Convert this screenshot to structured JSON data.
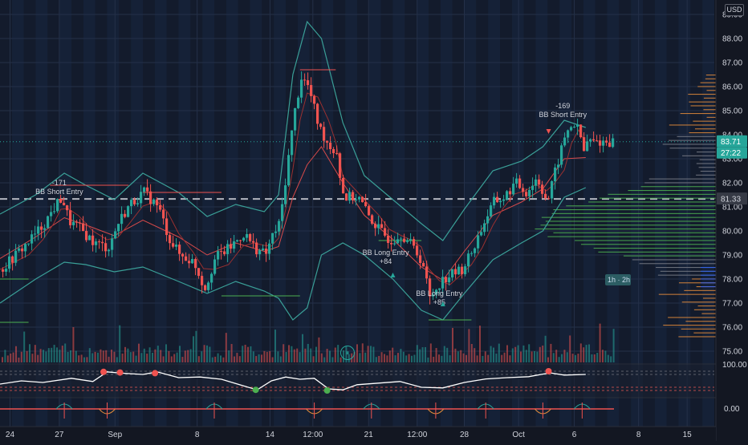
{
  "chart_data": {
    "type": "candlestick",
    "currency_label": "USD",
    "y_ticks": [
      "89.00",
      "88.00",
      "87.00",
      "86.00",
      "85.00",
      "84.00",
      "83.00",
      "82.00",
      "81.00",
      "80.00",
      "79.00",
      "78.00",
      "77.00",
      "76.00",
      "75.00"
    ],
    "y_tick_values": [
      89,
      88,
      87,
      86,
      85,
      84,
      83,
      82,
      81,
      80,
      79,
      78,
      77,
      76,
      75
    ],
    "x_ticks": [
      "24",
      "27",
      "Sep",
      "8",
      "14",
      "12:00",
      "21",
      "12:00",
      "28",
      "Oct",
      "6",
      "8",
      "15"
    ],
    "x_tick_frac": [
      0.014,
      0.083,
      0.161,
      0.276,
      0.378,
      0.438,
      0.516,
      0.584,
      0.65,
      0.726,
      0.804,
      0.894,
      0.962
    ],
    "ylim": [
      74.5,
      89.6
    ],
    "price_badges": {
      "last_price": {
        "label": "83.71",
        "value": 83.71,
        "color": "#26a69a"
      },
      "countdown": {
        "label": "27:22",
        "color": "#26a69a"
      },
      "dashed_level": {
        "label": "81.33",
        "value": 81.33,
        "color": "#b2b5be"
      },
      "volume_profile_tag": {
        "label": "1h · 2h"
      }
    },
    "annotations": [
      {
        "label": "-171",
        "sub": "BB Short Entry",
        "x": 0.083,
        "y": 81.9
      },
      {
        "label": "BB Long Entry",
        "sub": "+84",
        "x": 0.54,
        "y": 79.0
      },
      {
        "label": "BB Long Entry",
        "sub": "+85",
        "x": 0.615,
        "y": 77.3
      },
      {
        "label": "-169",
        "sub": "BB Short Entry",
        "x": 0.788,
        "y": 85.1
      }
    ],
    "close_path": [
      [
        0.0,
        78.4
      ],
      [
        0.02,
        79.0
      ],
      [
        0.04,
        79.6
      ],
      [
        0.06,
        80.3
      ],
      [
        0.075,
        81.0
      ],
      [
        0.085,
        81.4
      ],
      [
        0.095,
        80.4
      ],
      [
        0.11,
        80.1
      ],
      [
        0.13,
        79.5
      ],
      [
        0.15,
        79.3
      ],
      [
        0.165,
        80.4
      ],
      [
        0.18,
        81.1
      ],
      [
        0.2,
        81.6
      ],
      [
        0.22,
        81.0
      ],
      [
        0.235,
        79.7
      ],
      [
        0.25,
        79.0
      ],
      [
        0.27,
        78.7
      ],
      [
        0.285,
        77.6
      ],
      [
        0.3,
        78.9
      ],
      [
        0.32,
        79.3
      ],
      [
        0.34,
        79.9
      ],
      [
        0.355,
        79.3
      ],
      [
        0.37,
        79.0
      ],
      [
        0.38,
        79.8
      ],
      [
        0.39,
        80.3
      ],
      [
        0.4,
        82.6
      ],
      [
        0.41,
        84.8
      ],
      [
        0.42,
        86.4
      ],
      [
        0.43,
        86.0
      ],
      [
        0.445,
        84.3
      ],
      [
        0.46,
        83.5
      ],
      [
        0.47,
        83.3
      ],
      [
        0.475,
        82.1
      ],
      [
        0.48,
        81.4
      ],
      [
        0.5,
        81.4
      ],
      [
        0.515,
        80.6
      ],
      [
        0.53,
        80.0
      ],
      [
        0.545,
        79.6
      ],
      [
        0.56,
        79.9
      ],
      [
        0.575,
        79.4
      ],
      [
        0.59,
        78.7
      ],
      [
        0.6,
        77.2
      ],
      [
        0.615,
        77.9
      ],
      [
        0.63,
        78.2
      ],
      [
        0.645,
        78.4
      ],
      [
        0.66,
        79.2
      ],
      [
        0.675,
        80.3
      ],
      [
        0.69,
        81.2
      ],
      [
        0.705,
        81.4
      ],
      [
        0.72,
        82.0
      ],
      [
        0.735,
        81.6
      ],
      [
        0.75,
        82.2
      ],
      [
        0.765,
        81.2
      ],
      [
        0.775,
        82.4
      ],
      [
        0.79,
        84.0
      ],
      [
        0.8,
        84.5
      ],
      [
        0.81,
        84.1
      ],
      [
        0.815,
        83.2
      ],
      [
        0.82,
        83.71
      ]
    ],
    "bb_upper_path": [
      [
        0.0,
        80.7
      ],
      [
        0.05,
        81.5
      ],
      [
        0.09,
        82.4
      ],
      [
        0.12,
        81.9
      ],
      [
        0.16,
        81.3
      ],
      [
        0.2,
        82.4
      ],
      [
        0.25,
        81.6
      ],
      [
        0.29,
        80.6
      ],
      [
        0.33,
        81.1
      ],
      [
        0.37,
        80.8
      ],
      [
        0.39,
        81.5
      ],
      [
        0.41,
        86.5
      ],
      [
        0.43,
        88.7
      ],
      [
        0.45,
        88.0
      ],
      [
        0.48,
        84.5
      ],
      [
        0.51,
        82.3
      ],
      [
        0.55,
        81.3
      ],
      [
        0.59,
        80.3
      ],
      [
        0.62,
        79.6
      ],
      [
        0.65,
        80.9
      ],
      [
        0.69,
        82.5
      ],
      [
        0.73,
        82.9
      ],
      [
        0.76,
        83.5
      ],
      [
        0.79,
        84.6
      ],
      [
        0.82,
        84.3
      ]
    ],
    "bb_lower_path": [
      [
        0.0,
        77.0
      ],
      [
        0.05,
        78.0
      ],
      [
        0.09,
        78.7
      ],
      [
        0.12,
        78.6
      ],
      [
        0.16,
        78.3
      ],
      [
        0.2,
        78.5
      ],
      [
        0.25,
        77.9
      ],
      [
        0.29,
        77.4
      ],
      [
        0.33,
        77.9
      ],
      [
        0.37,
        77.5
      ],
      [
        0.39,
        77.2
      ],
      [
        0.41,
        76.3
      ],
      [
        0.43,
        76.8
      ],
      [
        0.45,
        79.0
      ],
      [
        0.48,
        79.5
      ],
      [
        0.51,
        79.0
      ],
      [
        0.55,
        78.0
      ],
      [
        0.59,
        76.7
      ],
      [
        0.62,
        76.3
      ],
      [
        0.65,
        77.4
      ],
      [
        0.69,
        78.8
      ],
      [
        0.73,
        79.5
      ],
      [
        0.76,
        80.0
      ],
      [
        0.79,
        81.4
      ],
      [
        0.82,
        81.8
      ]
    ],
    "rsi": {
      "ylim": [
        0,
        100
      ],
      "y_tick": "100.00",
      "levels": [
        80,
        70,
        30,
        20
      ],
      "path": [
        [
          0.0,
          40
        ],
        [
          0.03,
          50
        ],
        [
          0.06,
          45
        ],
        [
          0.1,
          58
        ],
        [
          0.13,
          48
        ],
        [
          0.15,
          78
        ],
        [
          0.17,
          74
        ],
        [
          0.2,
          70
        ],
        [
          0.22,
          78
        ],
        [
          0.25,
          60
        ],
        [
          0.28,
          62
        ],
        [
          0.31,
          55
        ],
        [
          0.34,
          35
        ],
        [
          0.36,
          22
        ],
        [
          0.38,
          50
        ],
        [
          0.4,
          62
        ],
        [
          0.42,
          55
        ],
        [
          0.44,
          58
        ],
        [
          0.46,
          25
        ],
        [
          0.48,
          22
        ],
        [
          0.5,
          38
        ],
        [
          0.53,
          43
        ],
        [
          0.56,
          48
        ],
        [
          0.59,
          30
        ],
        [
          0.62,
          28
        ],
        [
          0.65,
          45
        ],
        [
          0.68,
          56
        ],
        [
          0.71,
          60
        ],
        [
          0.74,
          63
        ],
        [
          0.77,
          75
        ],
        [
          0.79,
          68
        ],
        [
          0.82,
          70
        ]
      ],
      "red_dots": [
        [
          0.145,
          78
        ],
        [
          0.168,
          76
        ],
        [
          0.217,
          74
        ],
        [
          0.768,
          80
        ]
      ],
      "green_dots": [
        [
          0.358,
          22
        ],
        [
          0.458,
          20
        ]
      ]
    },
    "osc": {
      "y_tick": "0.00",
      "spikes": [
        0.09,
        0.15,
        0.3,
        0.44,
        0.52,
        0.61,
        0.68,
        0.76,
        0.815
      ]
    }
  }
}
